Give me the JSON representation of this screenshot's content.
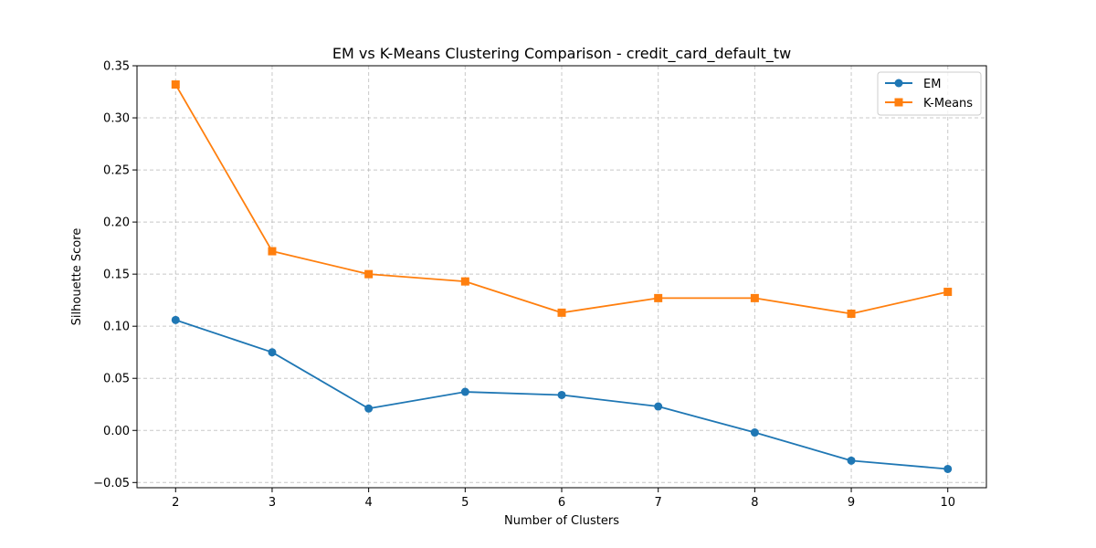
{
  "chart_data": {
    "type": "line",
    "title": "EM vs K-Means Clustering Comparison - credit_card_default_tw",
    "xlabel": "Number of Clusters",
    "ylabel": "Silhouette Score",
    "x": [
      2,
      3,
      4,
      5,
      6,
      7,
      8,
      9,
      10
    ],
    "xlim": [
      1.6,
      10.4
    ],
    "ylim": [
      -0.055,
      0.35
    ],
    "xticks": [
      "2",
      "3",
      "4",
      "5",
      "6",
      "7",
      "8",
      "9",
      "10"
    ],
    "yticks": [
      "−0.05",
      "0.00",
      "0.05",
      "0.10",
      "0.15",
      "0.20",
      "0.25",
      "0.30",
      "0.35"
    ],
    "ytick_values": [
      -0.05,
      0.0,
      0.05,
      0.1,
      0.15,
      0.2,
      0.25,
      0.3,
      0.35
    ],
    "grid": true,
    "legend_position": "top-right",
    "series": [
      {
        "name": "EM",
        "marker": "circle",
        "color": "#1f77b4",
        "values": [
          0.106,
          0.075,
          0.021,
          0.037,
          0.034,
          0.023,
          -0.002,
          -0.029,
          -0.037
        ]
      },
      {
        "name": "K-Means",
        "marker": "square",
        "color": "#ff7f0e",
        "values": [
          0.332,
          0.172,
          0.15,
          0.143,
          0.113,
          0.127,
          0.127,
          0.112,
          0.133
        ]
      }
    ]
  }
}
